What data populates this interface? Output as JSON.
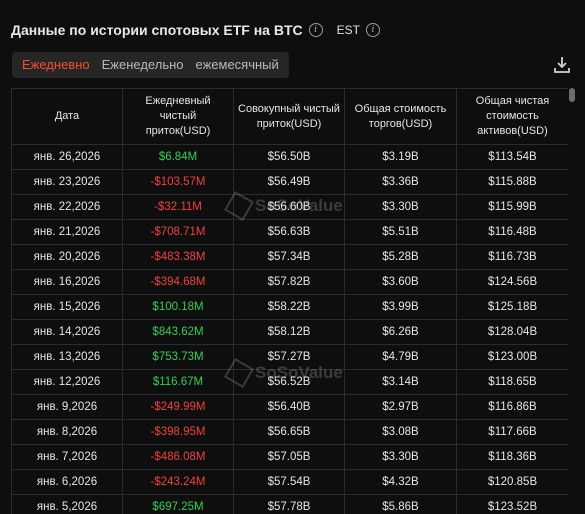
{
  "header": {
    "title": "Данные по истории спотовых ETF на BTC",
    "timezone": "EST"
  },
  "tabs": [
    {
      "label": "Ежедневно",
      "active": true
    },
    {
      "label": "Еженедельно",
      "active": false
    },
    {
      "label": "ежемесячный",
      "active": false
    }
  ],
  "table": {
    "columns": [
      "Дата",
      "Ежедневный чистый приток(USD)",
      "Совокупный чистый приток(USD)",
      "Общая стоимость торгов(USD)",
      "Общая чистая стоимость активов(USD)"
    ],
    "rows": [
      {
        "date": "янв. 26,2026",
        "daily": "$6.84M",
        "sign": "pos",
        "cum": "$56.50B",
        "trade": "$3.19B",
        "assets": "$113.54B"
      },
      {
        "date": "янв. 23,2026",
        "daily": "-$103.57M",
        "sign": "neg",
        "cum": "$56.49B",
        "trade": "$3.36B",
        "assets": "$115.88B"
      },
      {
        "date": "янв. 22,2026",
        "daily": "-$32.11M",
        "sign": "neg",
        "cum": "$56.60B",
        "trade": "$3.30B",
        "assets": "$115.99B"
      },
      {
        "date": "янв. 21,2026",
        "daily": "-$708.71M",
        "sign": "neg",
        "cum": "$56.63B",
        "trade": "$5.51B",
        "assets": "$116.48B"
      },
      {
        "date": "янв. 20,2026",
        "daily": "-$483.38M",
        "sign": "neg",
        "cum": "$57.34B",
        "trade": "$5.28B",
        "assets": "$116.73B"
      },
      {
        "date": "янв. 16,2026",
        "daily": "-$394.68M",
        "sign": "neg",
        "cum": "$57.82B",
        "trade": "$3.60B",
        "assets": "$124.56B"
      },
      {
        "date": "янв. 15,2026",
        "daily": "$100.18M",
        "sign": "pos",
        "cum": "$58.22B",
        "trade": "$3.99B",
        "assets": "$125.18B"
      },
      {
        "date": "янв. 14,2026",
        "daily": "$843.62M",
        "sign": "pos",
        "cum": "$58.12B",
        "trade": "$6.26B",
        "assets": "$128.04B"
      },
      {
        "date": "янв. 13,2026",
        "daily": "$753.73M",
        "sign": "pos",
        "cum": "$57.27B",
        "trade": "$4.79B",
        "assets": "$123.00B"
      },
      {
        "date": "янв. 12,2026",
        "daily": "$116.67M",
        "sign": "pos",
        "cum": "$56.52B",
        "trade": "$3.14B",
        "assets": "$118.65B"
      },
      {
        "date": "янв. 9,2026",
        "daily": "-$249.99M",
        "sign": "neg",
        "cum": "$56.40B",
        "trade": "$2.97B",
        "assets": "$116.86B"
      },
      {
        "date": "янв. 8,2026",
        "daily": "-$398.95M",
        "sign": "neg",
        "cum": "$56.65B",
        "trade": "$3.08B",
        "assets": "$117.66B"
      },
      {
        "date": "янв. 7,2026",
        "daily": "-$486.08M",
        "sign": "neg",
        "cum": "$57.05B",
        "trade": "$3.30B",
        "assets": "$118.36B"
      },
      {
        "date": "янв. 6,2026",
        "daily": "-$243.24M",
        "sign": "neg",
        "cum": "$57.54B",
        "trade": "$4.32B",
        "assets": "$120.85B"
      },
      {
        "date": "янв. 5,2026",
        "daily": "$697.25M",
        "sign": "pos",
        "cum": "$57.78B",
        "trade": "$5.86B",
        "assets": "$123.52B"
      }
    ]
  },
  "watermark": {
    "text": "SoSoValue"
  },
  "colors": {
    "accent": "#f24f2e",
    "positive": "#2ed158",
    "negative": "#f0413c"
  },
  "icons": {
    "info": "info-icon",
    "download": "download-icon"
  }
}
